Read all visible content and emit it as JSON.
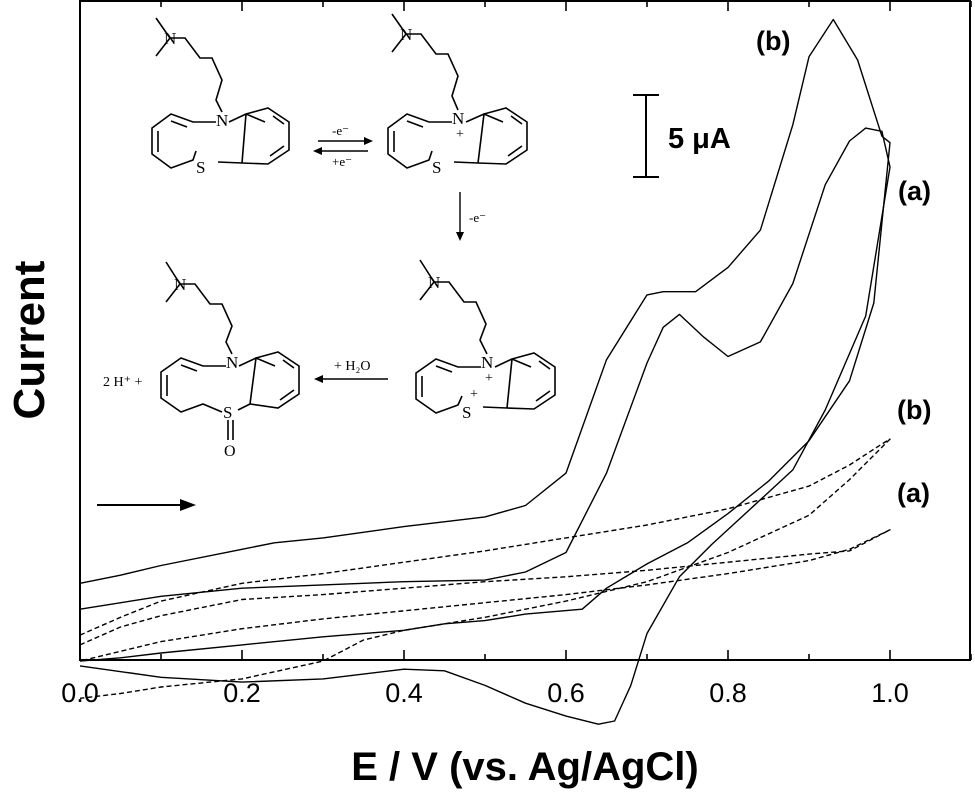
{
  "chart_data": {
    "type": "line",
    "xlabel": "E / V (vs. Ag/AgCl)",
    "ylabel": "Current",
    "xlim": [
      0.0,
      1.1
    ],
    "x_ticks": [
      "0.0",
      "0.2",
      "0.4",
      "0.6",
      "0.8",
      "1.0"
    ],
    "y_tick_labels": "none",
    "grid": false,
    "scale_bar_label": "5 μA",
    "scale_bar_value_uA": 5,
    "scan_direction_arrow": "positive",
    "series": [
      {
        "name": "(b)",
        "line_style": "solid",
        "x": [
          0.0,
          0.05,
          0.1,
          0.2,
          0.24,
          0.3,
          0.4,
          0.5,
          0.55,
          0.6,
          0.65,
          0.7,
          0.72,
          0.76,
          0.8,
          0.84,
          0.88,
          0.9,
          0.93,
          0.96,
          0.99,
          1.0,
          0.98,
          0.95,
          0.9,
          0.85,
          0.8,
          0.75,
          0.7,
          0.65,
          0.62,
          0.55,
          0.5,
          0.45,
          0.4,
          0.3,
          0.2,
          0.1,
          0.05,
          0.0
        ],
        "current_uA": [
          -1.5,
          -1.0,
          -0.4,
          0.6,
          1.0,
          1.3,
          2.0,
          2.6,
          3.3,
          5.3,
          12.3,
          16.3,
          16.5,
          16.5,
          18.0,
          20.3,
          26.8,
          31.0,
          33.3,
          30.8,
          26.1,
          25.7,
          15.8,
          11.0,
          7.3,
          4.8,
          2.8,
          1.0,
          -0.3,
          -1.8,
          -3.1,
          -3.4,
          -3.8,
          -4.0,
          -4.4,
          -4.8,
          -5.3,
          -5.8,
          -6.1,
          -6.3
        ]
      },
      {
        "name": "(a)",
        "line_style": "solid",
        "x": [
          0.0,
          0.1,
          0.2,
          0.3,
          0.4,
          0.5,
          0.55,
          0.6,
          0.65,
          0.7,
          0.72,
          0.74,
          0.77,
          0.8,
          0.84,
          0.88,
          0.92,
          0.95,
          0.97,
          0.99,
          1.0,
          0.97,
          0.92,
          0.88,
          0.83,
          0.78,
          0.74,
          0.7,
          0.68,
          0.66,
          0.64,
          0.6,
          0.55,
          0.5,
          0.45,
          0.4,
          0.3,
          0.2,
          0.1,
          0.0
        ],
        "current_uA": [
          -3.1,
          -2.3,
          -1.8,
          -1.6,
          -1.4,
          -1.3,
          -0.8,
          0.4,
          5.3,
          12.1,
          14.3,
          15.1,
          13.7,
          12.5,
          13.4,
          17.0,
          23.1,
          25.8,
          26.6,
          26.4,
          24.2,
          15.0,
          9.2,
          5.5,
          3.2,
          0.9,
          -1.1,
          -4.6,
          -7.8,
          -10.0,
          -10.2,
          -9.7,
          -8.9,
          -7.8,
          -6.9,
          -6.8,
          -7.4,
          -7.6,
          -7.3,
          -6.6
        ]
      },
      {
        "name": "(b)",
        "line_style": "dashed",
        "x": [
          0.0,
          0.05,
          0.1,
          0.2,
          0.3,
          0.4,
          0.5,
          0.6,
          0.7,
          0.8,
          0.9,
          0.95,
          0.99,
          1.0,
          0.95,
          0.9,
          0.8,
          0.7,
          0.6,
          0.5,
          0.4,
          0.35,
          0.3,
          0.2,
          0.1,
          0.05,
          0.0
        ],
        "current_uA": [
          -4.7,
          -3.6,
          -2.6,
          -1.5,
          -0.9,
          -0.2,
          0.5,
          1.3,
          2.1,
          3.1,
          4.5,
          5.8,
          7.1,
          7.4,
          4.9,
          2.7,
          0.4,
          -1.4,
          -2.6,
          -3.6,
          -4.4,
          -5.0,
          -6.3,
          -7.4,
          -7.9,
          -8.3,
          -8.6
        ]
      },
      {
        "name": "(a)",
        "line_style": "dashed",
        "x": [
          0.0,
          0.05,
          0.1,
          0.2,
          0.3,
          0.4,
          0.5,
          0.6,
          0.7,
          0.8,
          0.9,
          0.95,
          1.0,
          0.95,
          0.9,
          0.8,
          0.7,
          0.6,
          0.5,
          0.4,
          0.3,
          0.2,
          0.1,
          0.05,
          0.0
        ],
        "current_uA": [
          -5.3,
          -4.2,
          -3.5,
          -2.5,
          -2.2,
          -1.8,
          -1.4,
          -1.1,
          -0.7,
          -0.2,
          0.3,
          0.5,
          1.8,
          0.6,
          -0.1,
          -0.9,
          -1.6,
          -2.2,
          -2.7,
          -3.2,
          -3.7,
          -4.3,
          -5.1,
          -5.7,
          -6.3
        ]
      }
    ]
  },
  "scheme": {
    "redox_forward": "-e⁻",
    "redox_reverse": "+e⁻",
    "second_oxidation": "-e⁻",
    "hydrolysis": "+ H₂O",
    "proton_products": "2 H⁺ +",
    "sulfur_atom": "S",
    "nitrogen_atom": "N",
    "oxygen_atom": "O",
    "radical_cation_charge": "+",
    "dication_charge": "+"
  }
}
